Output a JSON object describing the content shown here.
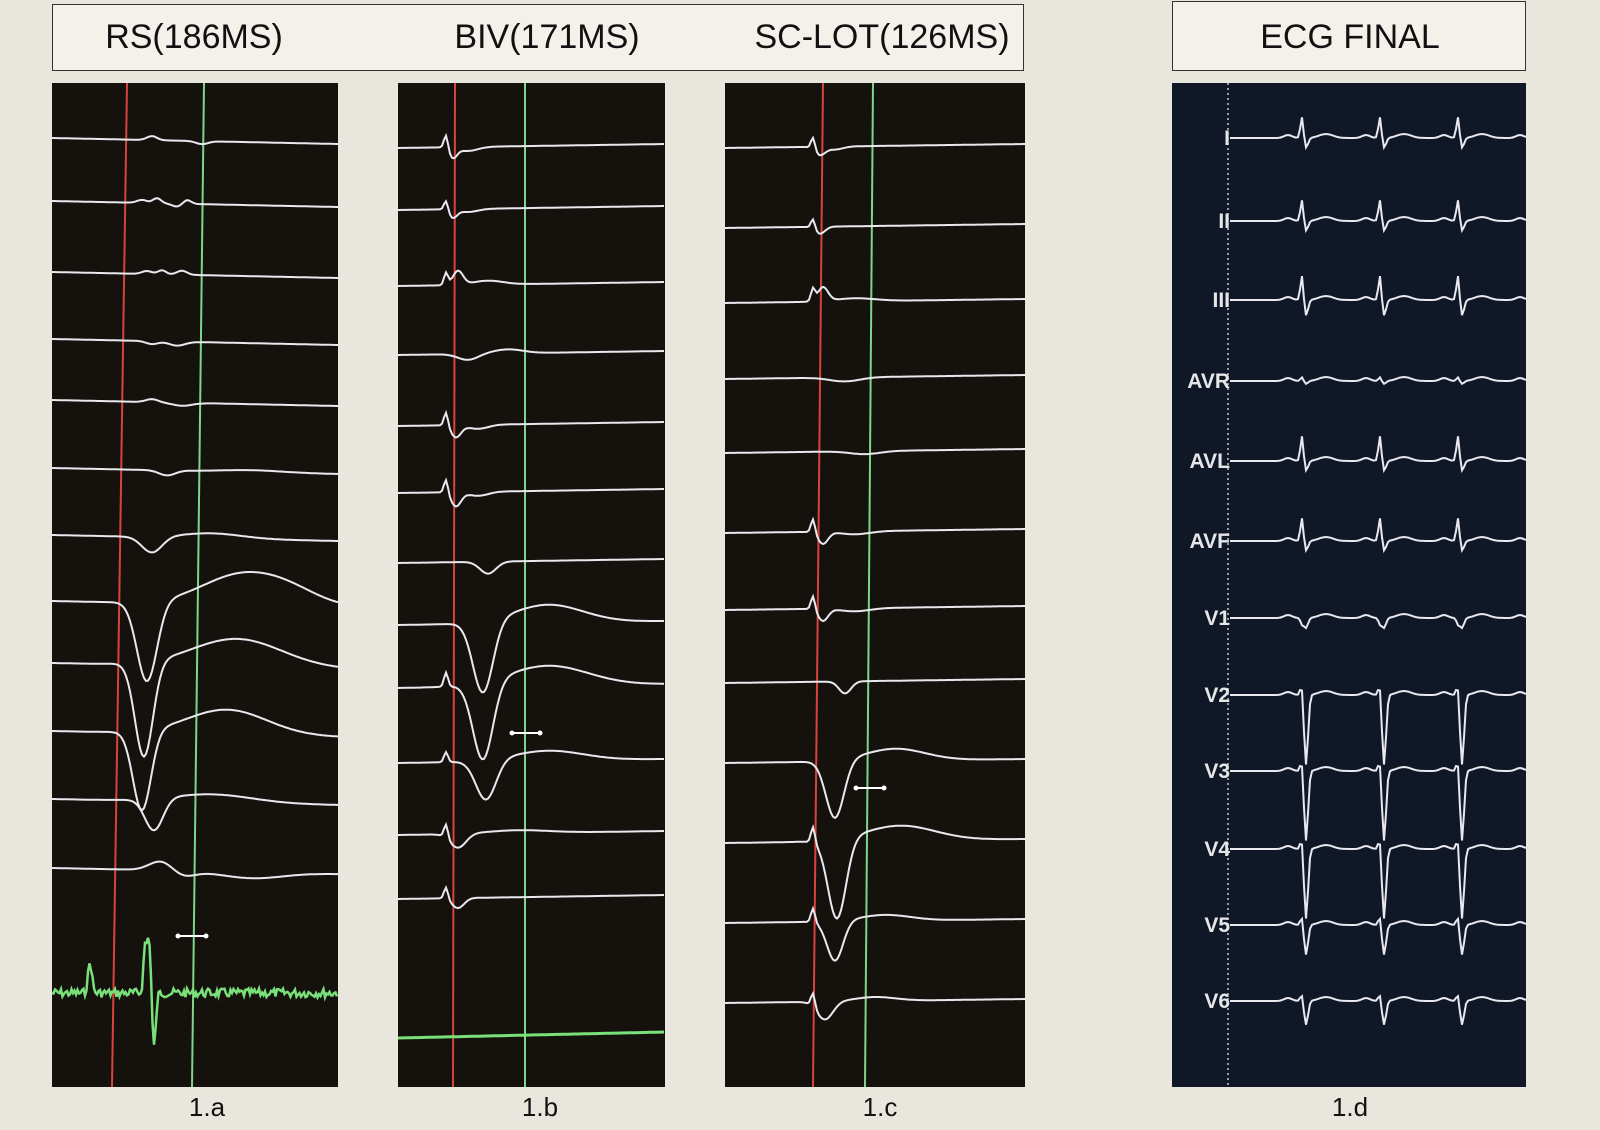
{
  "header": {
    "panel_titles": [
      "RS(186MS)",
      "BIV(171MS)",
      "SC-LOT(126MS)"
    ],
    "ecg_title": "ECG FINAL"
  },
  "captions": [
    "1.a",
    "1.b",
    "1.c",
    "1.d"
  ],
  "ecg_leads": [
    "I",
    "II",
    "III",
    "AVR",
    "AVL",
    "AVF",
    "V1",
    "V2",
    "V3",
    "V4",
    "V5",
    "V6"
  ],
  "colors": {
    "trace": "#e8e8ee",
    "red_marker": "#d8443c",
    "green_marker": "#7fd48c",
    "green_trace": "#79e07a",
    "panel_bg": "#15120e",
    "ecg_bg": "#101828"
  }
}
